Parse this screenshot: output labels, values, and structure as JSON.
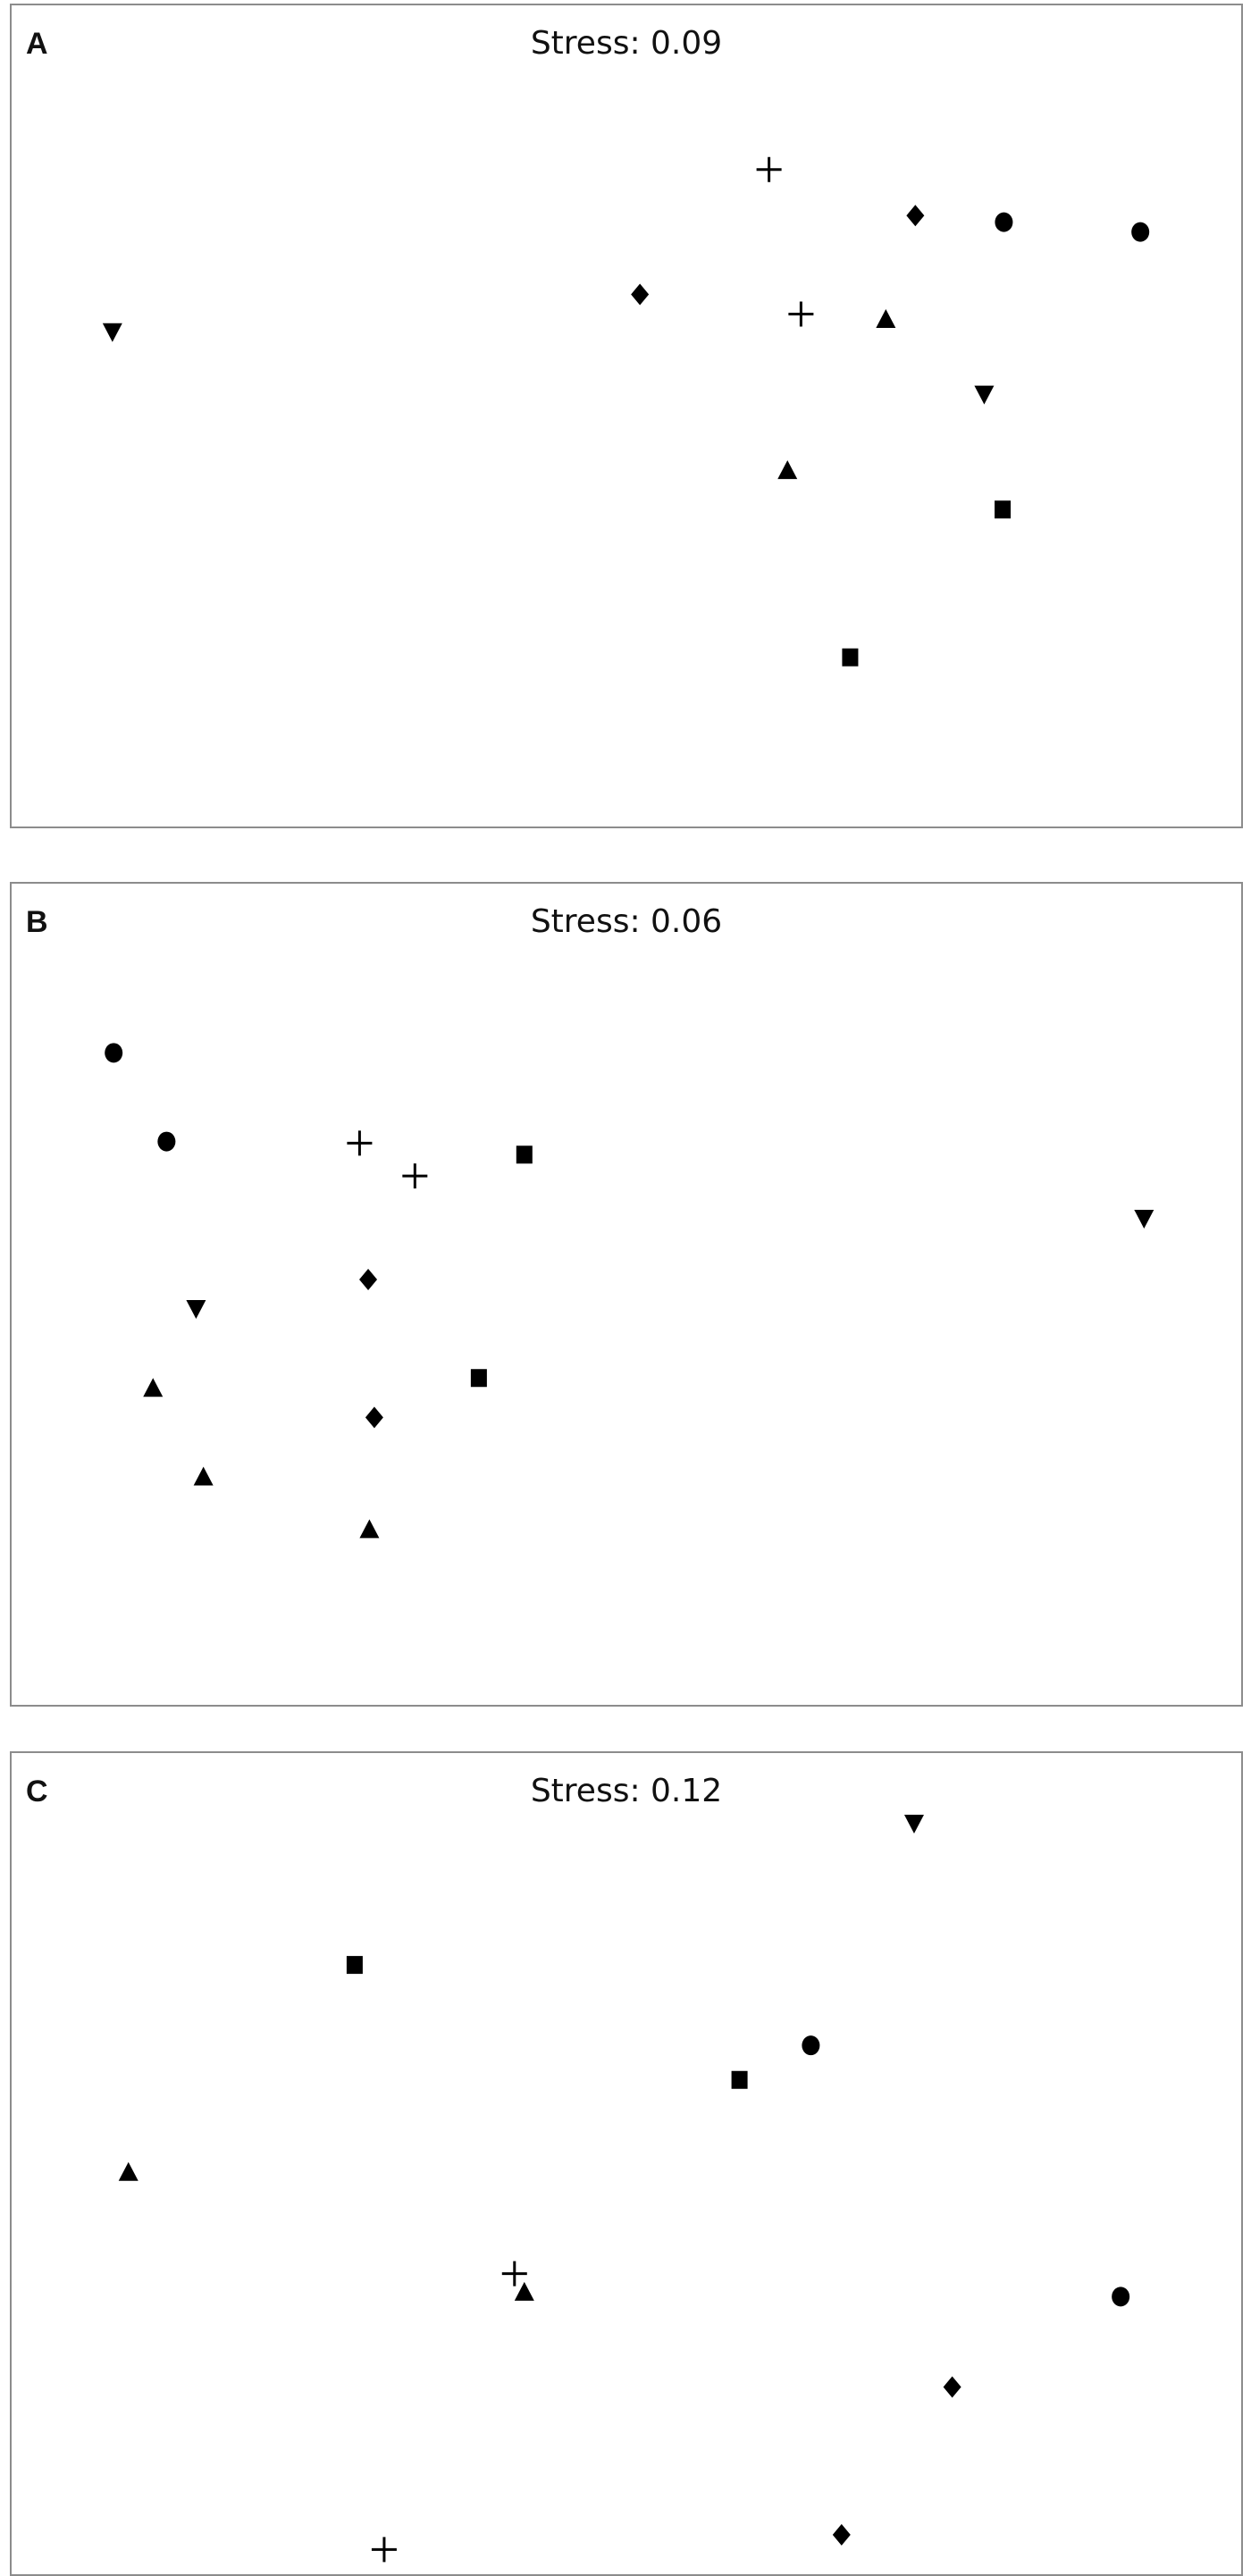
{
  "chart_data": [
    {
      "type": "scatter",
      "panel_label": "A",
      "title": "Stress: 0.09",
      "xlim": [
        0,
        100
      ],
      "ylim": [
        0,
        100
      ],
      "grid": false,
      "points": [
        {
          "marker": "plus",
          "x": 61.6,
          "y": 80.0
        },
        {
          "marker": "plus",
          "x": 64.2,
          "y": 62.4
        },
        {
          "marker": "diamond",
          "x": 73.5,
          "y": 74.4
        },
        {
          "marker": "diamond",
          "x": 51.1,
          "y": 64.8
        },
        {
          "marker": "circle",
          "x": 80.7,
          "y": 73.6
        },
        {
          "marker": "circle",
          "x": 91.8,
          "y": 72.4
        },
        {
          "marker": "triangle-up",
          "x": 71.1,
          "y": 61.8
        },
        {
          "marker": "triangle-up",
          "x": 63.1,
          "y": 43.4
        },
        {
          "marker": "triangle-down",
          "x": 8.2,
          "y": 60.2
        },
        {
          "marker": "triangle-down",
          "x": 79.1,
          "y": 52.6
        },
        {
          "marker": "square",
          "x": 80.6,
          "y": 38.6
        },
        {
          "marker": "square",
          "x": 68.2,
          "y": 20.6
        }
      ]
    },
    {
      "type": "scatter",
      "panel_label": "B",
      "title": "Stress: 0.06",
      "xlim": [
        0,
        100
      ],
      "ylim": [
        0,
        100
      ],
      "grid": false,
      "points": [
        {
          "marker": "circle",
          "x": 8.3,
          "y": 79.4
        },
        {
          "marker": "circle",
          "x": 12.6,
          "y": 68.6
        },
        {
          "marker": "plus",
          "x": 28.3,
          "y": 68.4
        },
        {
          "marker": "plus",
          "x": 32.8,
          "y": 64.4
        },
        {
          "marker": "square",
          "x": 41.7,
          "y": 67.0
        },
        {
          "marker": "square",
          "x": 38.0,
          "y": 39.8
        },
        {
          "marker": "triangle-down",
          "x": 92.1,
          "y": 59.2
        },
        {
          "marker": "triangle-down",
          "x": 15.0,
          "y": 48.2
        },
        {
          "marker": "diamond",
          "x": 29.0,
          "y": 51.8
        },
        {
          "marker": "diamond",
          "x": 29.5,
          "y": 35.0
        },
        {
          "marker": "triangle-up",
          "x": 11.5,
          "y": 38.6
        },
        {
          "marker": "triangle-up",
          "x": 15.6,
          "y": 27.8
        },
        {
          "marker": "triangle-up",
          "x": 29.1,
          "y": 21.4
        }
      ]
    },
    {
      "type": "scatter",
      "panel_label": "C",
      "title": "Stress: 0.12",
      "xlim": [
        0,
        100
      ],
      "ylim": [
        0,
        100
      ],
      "grid": false,
      "points": [
        {
          "marker": "triangle-down",
          "x": 73.4,
          "y": 91.4
        },
        {
          "marker": "square",
          "x": 27.9,
          "y": 74.2
        },
        {
          "marker": "square",
          "x": 59.2,
          "y": 60.2
        },
        {
          "marker": "circle",
          "x": 65.0,
          "y": 64.4
        },
        {
          "marker": "circle",
          "x": 90.2,
          "y": 33.8
        },
        {
          "marker": "triangle-up",
          "x": 9.5,
          "y": 49.0
        },
        {
          "marker": "triangle-up",
          "x": 41.7,
          "y": 34.4
        },
        {
          "marker": "plus",
          "x": 40.9,
          "y": 36.6
        },
        {
          "marker": "plus",
          "x": 30.3,
          "y": 3.0
        },
        {
          "marker": "diamond",
          "x": 76.5,
          "y": 22.8
        },
        {
          "marker": "diamond",
          "x": 67.5,
          "y": 4.8
        }
      ]
    }
  ],
  "colors": {
    "marker": "#000000",
    "frame": "#8c8c8c"
  }
}
